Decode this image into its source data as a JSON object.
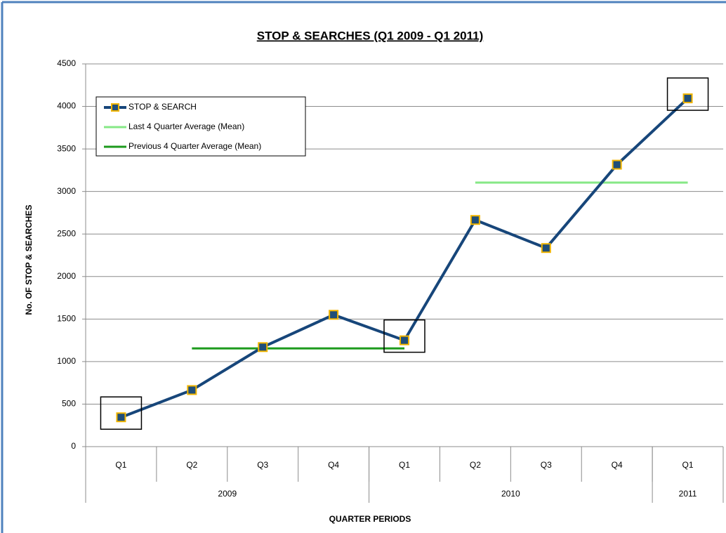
{
  "chart_data": {
    "type": "line",
    "title": "STOP & SEARCHES  (Q1 2009 - Q1 2011)",
    "x_label": "QUARTER PERIODS",
    "y_label": "No. OF STOP & SEARCHES",
    "categories": [
      "Q1",
      "Q2",
      "Q3",
      "Q4",
      "Q1",
      "Q2",
      "Q3",
      "Q4",
      "Q1"
    ],
    "groups": [
      {
        "label": "2009",
        "count": 4
      },
      {
        "label": "2010",
        "count": 4
      },
      {
        "label": "2011",
        "count": 1
      }
    ],
    "series": [
      {
        "name": "STOP & SEARCH",
        "color": "#17467a",
        "marker_fill": "#1f4e79",
        "marker_edge": "#f0b400",
        "values": [
          345,
          665,
          1170,
          1550,
          1250,
          2665,
          2335,
          3315,
          4095
        ]
      },
      {
        "name": "Last 4 Quarter Average (Mean)",
        "color": "#86e886",
        "values": [
          null,
          null,
          null,
          null,
          null,
          3105,
          3105,
          3105,
          3105
        ]
      },
      {
        "name": "Previous 4 Quarter Average (Mean)",
        "color": "#1c9a1c",
        "values": [
          null,
          1155,
          1155,
          1155,
          1155,
          null,
          null,
          null,
          null
        ]
      }
    ],
    "highlight_points": [
      0,
      4,
      8
    ],
    "ylim": [
      0,
      4500
    ],
    "yticks": [
      0,
      500,
      1000,
      1500,
      2000,
      2500,
      3000,
      3500,
      4000,
      4500
    ],
    "grid": true,
    "legend": "upper left"
  }
}
